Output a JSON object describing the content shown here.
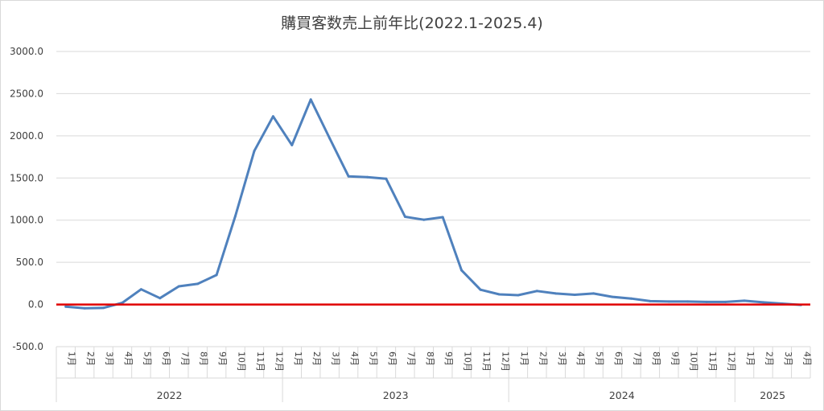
{
  "chart_data": {
    "type": "line",
    "title": "購買客数売上前年比(2022.1-2025.4)",
    "xlabel": "",
    "ylabel": "",
    "ylim": [
      -500,
      3000
    ],
    "yticks": [
      "3000.0",
      "2500.0",
      "2000.0",
      "1500.0",
      "1000.0",
      "500.0",
      "0.0",
      "-500.0"
    ],
    "ytick_values": [
      3000,
      2500,
      2000,
      1500,
      1000,
      500,
      0,
      -500
    ],
    "grid": true,
    "legend": "none",
    "line_color": "#4f81bd",
    "reference_line": {
      "value": 0,
      "color": "#e00000"
    },
    "year_groups": [
      {
        "label": "2022",
        "months": 12
      },
      {
        "label": "2023",
        "months": 12
      },
      {
        "label": "2024",
        "months": 12
      },
      {
        "label": "2025",
        "months": 4
      }
    ],
    "categories": [
      "1月",
      "2月",
      "3月",
      "4月",
      "5月",
      "6月",
      "7月",
      "8月",
      "9月",
      "10月",
      "11月",
      "12月",
      "1月",
      "2月",
      "3月",
      "4月",
      "5月",
      "6月",
      "7月",
      "8月",
      "9月",
      "10月",
      "11月",
      "12月",
      "1月",
      "2月",
      "3月",
      "4月",
      "5月",
      "6月",
      "7月",
      "8月",
      "9月",
      "10月",
      "11月",
      "12月",
      "1月",
      "2月",
      "3月",
      "4月"
    ],
    "series": [
      {
        "values": [
          -25,
          -45,
          -40,
          20,
          180,
          75,
          215,
          245,
          350,
          1050,
          1820,
          2230,
          1890,
          2430,
          1970,
          1520,
          1510,
          1490,
          1040,
          1005,
          1035,
          405,
          175,
          120,
          110,
          160,
          130,
          115,
          130,
          90,
          70,
          40,
          35,
          35,
          30,
          30,
          45,
          25,
          10,
          -5
        ]
      }
    ]
  }
}
